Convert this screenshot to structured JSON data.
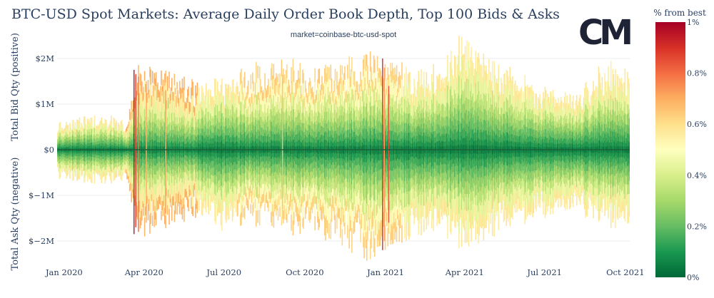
{
  "chart_data": {
    "type": "bar",
    "title": "BTC-USD Spot Markets: Average Daily Order Book Depth, Top 100 Bids & Asks",
    "subtitle": "market=coinbase-btc-usd-spot",
    "ylabel_top": "Total Bid Qty (positive)",
    "ylabel_bottom": "Total Ask Qty (negative)",
    "y_ticks": [
      {
        "value": 2000000,
        "label": "$2M"
      },
      {
        "value": 1000000,
        "label": "$1M"
      },
      {
        "value": 0,
        "label": "$0"
      },
      {
        "value": -1000000,
        "label": "$−1M"
      },
      {
        "value": -2000000,
        "label": "$−2M"
      }
    ],
    "ylim": [
      -2500000,
      2500000
    ],
    "x_range": [
      "2019-12-24",
      "2021-10-06"
    ],
    "x_ticks": [
      {
        "date": "2020-01-01",
        "label": "Jan 2020"
      },
      {
        "date": "2020-04-01",
        "label": "Apr 2020"
      },
      {
        "date": "2020-07-01",
        "label": "Jul 2020"
      },
      {
        "date": "2020-10-01",
        "label": "Oct 2020"
      },
      {
        "date": "2021-01-01",
        "label": "Jan 2021"
      },
      {
        "date": "2021-04-01",
        "label": "Apr 2021"
      },
      {
        "date": "2021-07-01",
        "label": "Jul 2021"
      },
      {
        "date": "2021-10-01",
        "label": "Oct 2021"
      }
    ],
    "colorbar": {
      "title": "% from best",
      "ticks": [
        {
          "value": 1.0,
          "label": "1%"
        },
        {
          "value": 0.8,
          "label": "0.8%"
        },
        {
          "value": 0.6,
          "label": "0.6%"
        },
        {
          "value": 0.4,
          "label": "0.4%"
        },
        {
          "value": 0.2,
          "label": "0.2%"
        },
        {
          "value": 0.0,
          "label": "0%"
        }
      ],
      "colors": [
        "#006837",
        "#1a9850",
        "#66bd63",
        "#a6d96a",
        "#d9ef8b",
        "#ffffbf",
        "#fee08b",
        "#fdae61",
        "#f46d43",
        "#d73027",
        "#a50026"
      ]
    },
    "envelope_key": {
      "weeks": [
        {
          "date": "2019-12-24",
          "bid": 550000,
          "ask": -600000
        },
        {
          "date": "2020-01-15",
          "bid": 650000,
          "ask": -650000
        },
        {
          "date": "2020-02-10",
          "bid": 700000,
          "ask": -700000
        },
        {
          "date": "2020-03-01",
          "bid": 650000,
          "ask": -650000
        },
        {
          "date": "2020-03-12",
          "bid": 500000,
          "ask": -600000
        },
        {
          "date": "2020-03-25",
          "bid": 1800000,
          "ask": -1900000
        },
        {
          "date": "2020-04-15",
          "bid": 1700000,
          "ask": -1600000
        },
        {
          "date": "2020-05-10",
          "bid": 1500000,
          "ask": -1450000
        },
        {
          "date": "2020-06-05",
          "bid": 1300000,
          "ask": -1300000
        },
        {
          "date": "2020-07-01",
          "bid": 1500000,
          "ask": -1600000
        },
        {
          "date": "2020-08-01",
          "bid": 1700000,
          "ask": -1500000
        },
        {
          "date": "2020-09-01",
          "bid": 1800000,
          "ask": -1600000
        },
        {
          "date": "2020-10-01",
          "bid": 1700000,
          "ask": -1700000
        },
        {
          "date": "2020-11-01",
          "bid": 1750000,
          "ask": -1800000
        },
        {
          "date": "2020-12-10",
          "bid": 2000000,
          "ask": -2200000
        },
        {
          "date": "2021-01-01",
          "bid": 1800000,
          "ask": -2000000
        },
        {
          "date": "2021-02-01",
          "bid": 1600000,
          "ask": -1800000
        },
        {
          "date": "2021-03-01",
          "bid": 1800000,
          "ask": -1800000
        },
        {
          "date": "2021-03-25",
          "bid": 2400000,
          "ask": -2000000
        },
        {
          "date": "2021-04-20",
          "bid": 2000000,
          "ask": -1900000
        },
        {
          "date": "2021-05-20",
          "bid": 1700000,
          "ask": -1600000
        },
        {
          "date": "2021-06-20",
          "bid": 1300000,
          "ask": -1400000
        },
        {
          "date": "2021-07-20",
          "bid": 1200000,
          "ask": -1300000
        },
        {
          "date": "2021-08-20",
          "bid": 1400000,
          "ask": -1400000
        },
        {
          "date": "2021-09-10",
          "bid": 1800000,
          "ask": -1600000
        },
        {
          "date": "2021-10-06",
          "bid": 1500000,
          "ask": -1500000
        }
      ]
    }
  },
  "logo": {
    "text": "CM"
  }
}
